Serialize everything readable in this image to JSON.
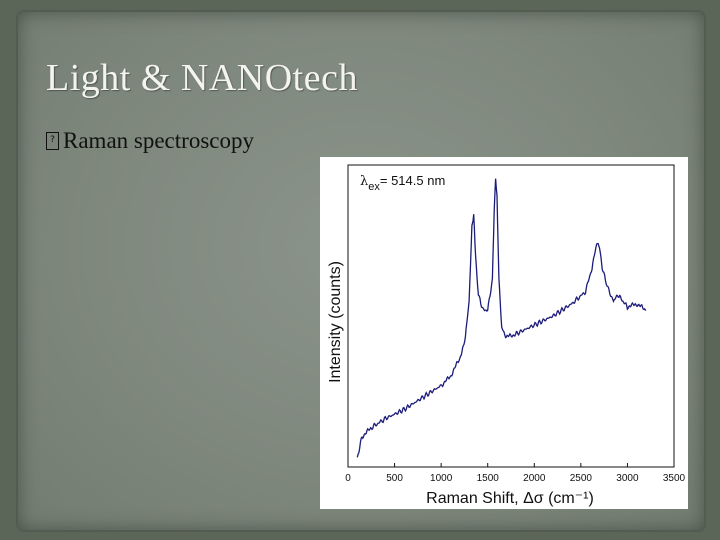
{
  "slide": {
    "title": "Light & NANOtech",
    "bullet_glyph": "?",
    "bullet_text": "Raman spectroscopy"
  },
  "chart_data": {
    "type": "line",
    "xlabel": "Raman Shift, Δσ  (cm⁻¹)",
    "ylabel": "Intensity (counts)",
    "xlim": [
      0,
      3500
    ],
    "x_ticks": [
      0,
      500,
      1000,
      1500,
      2000,
      2500,
      3000,
      3500
    ],
    "y_ticks_shown": false,
    "annotation": {
      "symbol": "λ",
      "subscript": "ex",
      "text": "= 514.5 nm"
    },
    "line_color": "#1c1c7a",
    "series": [
      {
        "x": [
          100,
          150,
          250,
          400,
          600,
          800,
          1000,
          1100,
          1200,
          1260,
          1300,
          1330,
          1350,
          1370,
          1400,
          1450,
          1500,
          1550,
          1570,
          1585,
          1600,
          1620,
          1650,
          1700,
          1800,
          2000,
          2200,
          2400,
          2550,
          2620,
          2670,
          2700,
          2730,
          2780,
          2850,
          2900,
          2950,
          3000,
          3100,
          3200
        ],
        "y": [
          0.03,
          0.1,
          0.13,
          0.16,
          0.19,
          0.23,
          0.27,
          0.3,
          0.36,
          0.43,
          0.55,
          0.8,
          0.83,
          0.7,
          0.57,
          0.52,
          0.52,
          0.62,
          0.85,
          0.96,
          0.9,
          0.62,
          0.46,
          0.43,
          0.44,
          0.47,
          0.5,
          0.54,
          0.58,
          0.66,
          0.74,
          0.73,
          0.66,
          0.6,
          0.55,
          0.57,
          0.55,
          0.53,
          0.54,
          0.52
        ]
      }
    ]
  }
}
